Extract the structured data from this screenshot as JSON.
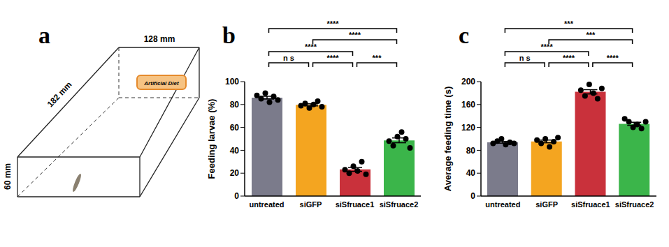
{
  "diagram": {
    "label": "a",
    "dimensions": {
      "length": "182 mm",
      "width": "128 mm",
      "height": "60 mm"
    },
    "item": "Artificial Diet"
  },
  "chart_data": [
    {
      "type": "bar",
      "title": "b",
      "ylabel": "Feeding larvae (%)",
      "categories": [
        "untreated",
        "siGFP",
        "siSfruace1",
        "siSfruace2"
      ],
      "values": [
        86,
        79.7,
        23.3,
        48.7
      ],
      "errors": [
        1.2,
        0.9,
        1.7,
        2.1
      ],
      "points": [
        [
          88,
          85,
          90,
          82,
          87,
          84
        ],
        [
          79,
          81,
          77,
          80,
          83,
          78
        ],
        [
          23,
          20,
          26,
          22,
          30,
          19
        ],
        [
          48,
          44,
          52,
          56,
          50,
          42
        ]
      ],
      "colors": [
        "#7b7b8b",
        "#f4a520",
        "#c9313b",
        "#3bb54a"
      ],
      "ylim": [
        0,
        100
      ],
      "yticks": [
        0,
        20,
        40,
        60,
        80,
        100
      ],
      "comparisons": [
        {
          "from": "untreated",
          "to": "siGFP",
          "label": "n s"
        },
        {
          "from": "siGFP",
          "to": "siSfruace1",
          "label": "****"
        },
        {
          "from": "siSfruace1",
          "to": "siSfruace2",
          "label": "***"
        },
        {
          "from": "untreated",
          "to": "siSfruace1",
          "label": "****"
        },
        {
          "from": "siGFP",
          "to": "siSfruace2",
          "label": "****"
        },
        {
          "from": "untreated",
          "to": "siSfruace2",
          "label": "****"
        }
      ]
    },
    {
      "type": "bar",
      "title": "c",
      "ylabel": "Average feeding time (s)",
      "categories": [
        "untreated",
        "siGFP",
        "siSfruace1",
        "siSfruace2"
      ],
      "values": [
        94,
        95.5,
        182.2,
        126.3
      ],
      "errors": [
        1.5,
        2.4,
        3.7,
        2.7
      ],
      "points": [
        [
          92,
          96,
          100,
          90,
          94,
          92
        ],
        [
          98,
          92,
          100,
          86,
          95,
          102
        ],
        [
          185,
          175,
          195,
          180,
          170,
          188
        ],
        [
          135,
          130,
          120,
          125,
          118,
          130
        ]
      ],
      "colors": [
        "#7b7b8b",
        "#f4a520",
        "#c9313b",
        "#3bb54a"
      ],
      "ylim": [
        0,
        200
      ],
      "yticks": [
        0,
        40,
        80,
        120,
        160,
        200
      ],
      "comparisons": [
        {
          "from": "untreated",
          "to": "siGFP",
          "label": "n s"
        },
        {
          "from": "siGFP",
          "to": "siSfruace1",
          "label": "****"
        },
        {
          "from": "siSfruace1",
          "to": "siSfruace2",
          "label": "****"
        },
        {
          "from": "untreated",
          "to": "siSfruace1",
          "label": "****"
        },
        {
          "from": "siGFP",
          "to": "siSfruace2",
          "label": "***"
        },
        {
          "from": "untreated",
          "to": "siSfruace2",
          "label": "***"
        }
      ]
    }
  ]
}
